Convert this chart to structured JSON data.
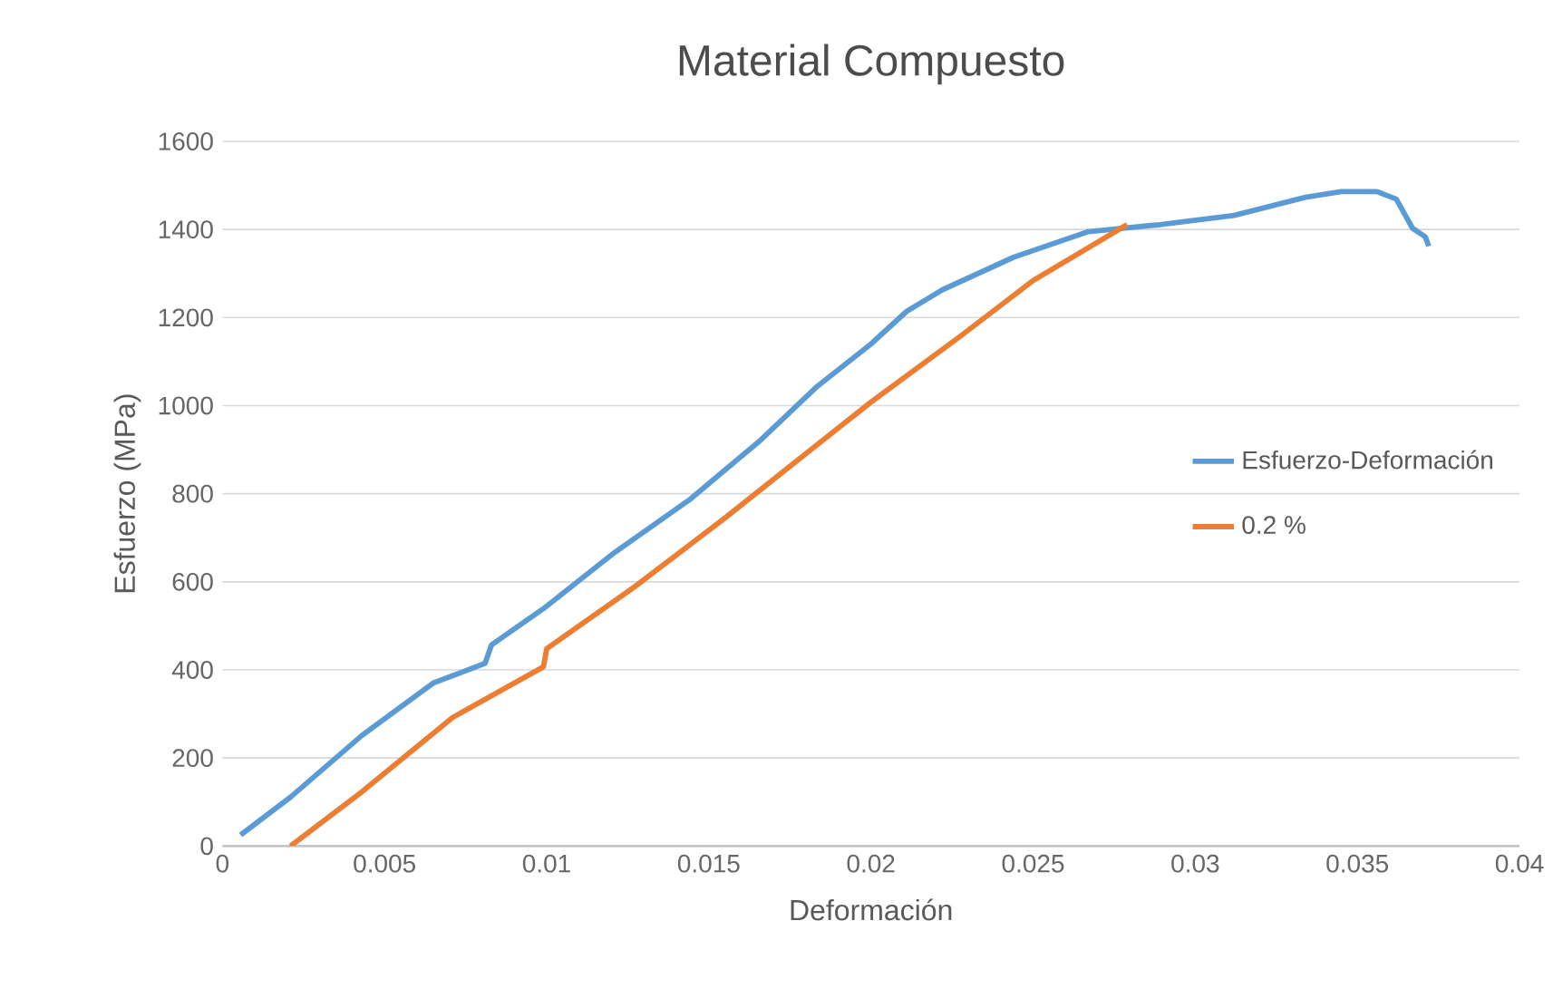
{
  "chart_data": {
    "type": "line",
    "title": "Material Compuesto",
    "xlabel": "Deformación",
    "ylabel": "Esfuerzo (MPa)",
    "xlim": [
      0,
      0.04
    ],
    "xticks": [
      0,
      0.005,
      0.01,
      0.015,
      0.02,
      0.025,
      0.03,
      0.035,
      0.04
    ],
    "ylim": [
      0,
      1600
    ],
    "yticks": [
      0,
      200,
      400,
      600,
      800,
      1000,
      1200,
      1400,
      1600
    ],
    "grid": "y",
    "legend": "right",
    "marker": "none",
    "line_style": "solid",
    "series": [
      {
        "name": "Esfuerzo-Deformación",
        "color": "#5b9bd5",
        "x": [
          0.00056,
          0.0021,
          0.0043,
          0.0065,
          0.0081,
          0.0083,
          0.0099,
          0.0121,
          0.0144,
          0.0166,
          0.0183,
          0.02,
          0.0211,
          0.0222,
          0.0244,
          0.0267,
          0.0289,
          0.0312,
          0.0334,
          0.0345,
          0.0356,
          0.0362,
          0.0367,
          0.0371,
          0.0372
        ],
        "values": [
          25,
          111,
          251,
          370,
          415,
          457,
          539,
          667,
          786,
          922,
          1041,
          1140,
          1214,
          1263,
          1337,
          1395,
          1411,
          1432,
          1473,
          1486,
          1486,
          1469,
          1403,
          1383,
          1362
        ]
      },
      {
        "name": "0.2 %",
        "color": "#ed7d31",
        "x": [
          0.0021,
          0.0043,
          0.0071,
          0.0099,
          0.01,
          0.0127,
          0.0155,
          0.0183,
          0.02,
          0.0228,
          0.025,
          0.0279
        ],
        "values": [
          0,
          123,
          292,
          407,
          448,
          588,
          745,
          909,
          1008,
          1160,
          1284,
          1411
        ]
      }
    ]
  }
}
